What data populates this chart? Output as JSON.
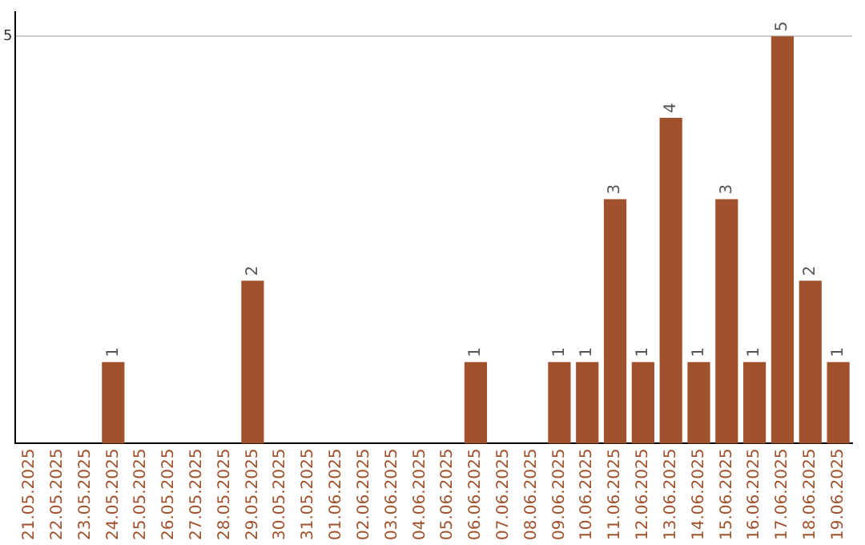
{
  "chart_data": {
    "type": "bar",
    "categories": [
      "21.05.2025",
      "22.05.2025",
      "23.05.2025",
      "24.05.2025",
      "25.05.2025",
      "26.05.2025",
      "27.05.2025",
      "28.05.2025",
      "29.05.2025",
      "30.05.2025",
      "31.05.2025",
      "01.06.2025",
      "02.06.2025",
      "03.06.2025",
      "04.06.2025",
      "05.06.2025",
      "06.06.2025",
      "07.06.2025",
      "08.06.2025",
      "09.06.2025",
      "10.06.2025",
      "11.06.2025",
      "12.06.2025",
      "13.06.2025",
      "14.06.2025",
      "15.06.2025",
      "16.06.2025",
      "17.06.2025",
      "18.06.2025",
      "19.06.2025"
    ],
    "values": [
      0,
      0,
      0,
      1,
      0,
      0,
      0,
      0,
      2,
      0,
      0,
      0,
      0,
      0,
      0,
      0,
      1,
      0,
      0,
      1,
      1,
      3,
      1,
      4,
      1,
      3,
      1,
      5,
      2,
      1
    ],
    "color": "#a0522d",
    "ylim": [
      0,
      5.3
    ],
    "yticks": [
      5
    ],
    "grid": "y",
    "legend": false,
    "value_labels": [
      null,
      null,
      null,
      "1",
      null,
      null,
      null,
      null,
      "2",
      null,
      null,
      null,
      null,
      null,
      null,
      null,
      "1",
      null,
      null,
      "1",
      "1",
      "3",
      "1",
      "4",
      "1",
      "3",
      "1",
      "5",
      "2",
      "1"
    ]
  }
}
